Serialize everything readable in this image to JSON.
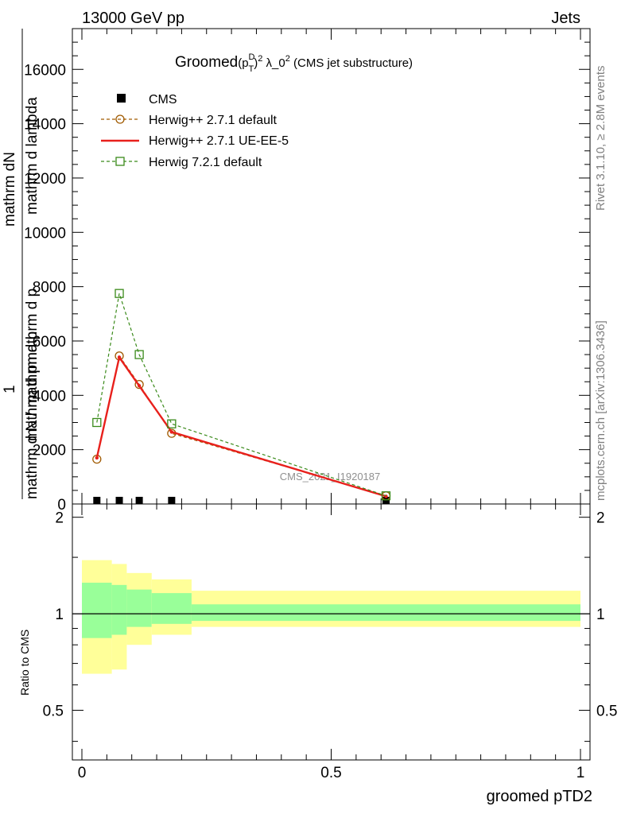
{
  "header": {
    "left": "13000 GeV pp",
    "right": "Jets"
  },
  "side_labels": {
    "rivet": "Rivet 3.1.10, ≥ 2.8M events",
    "mcplots": "mcplots.cern.ch [arXiv:1306.3436]"
  },
  "chart_data": [
    {
      "type": "line",
      "panel": "main",
      "title_prefix": "Groomed",
      "title_formula": "(p",
      "title_sup": "D",
      "title_sub": "T",
      "title_close": ")",
      "title_exp": "2",
      "title_suffix": " λ_0",
      "title_exp2": "2",
      "title_tail": " (CMS jet substructure)",
      "ylabel_top": "mathrm dN",
      "ylabel_bottom_1": "1",
      "ylabel_bottom_2": "mathrm d N / mathrm d p",
      "ylabel_mid": "mathrm d pmathrm d p",
      "ylabel_end": "mathrm d lambda",
      "watermark": "CMS_2021_I1920187",
      "xlim": [
        0,
        1
      ],
      "ylim": [
        0,
        17500
      ],
      "yticks": [
        0,
        2000,
        4000,
        6000,
        8000,
        10000,
        12000,
        14000,
        16000
      ],
      "ytick_labels": [
        "0",
        "2000",
        "4000",
        "6000",
        "8000",
        "10000",
        "12000",
        "14000",
        "16000"
      ],
      "legend_position": "top-left",
      "series": [
        {
          "name": "CMS",
          "style": "data-marker",
          "color": "#000000",
          "x": [
            0.03,
            0.075,
            0.115,
            0.18,
            0.61
          ],
          "y": [
            0,
            0,
            0,
            0,
            0
          ]
        },
        {
          "name": "Herwig++ 2.7.1 default",
          "style": "dashed-circle",
          "color": "#a05a00",
          "x": [
            0.03,
            0.075,
            0.115,
            0.18,
            0.61
          ],
          "y": [
            1650,
            5450,
            4400,
            2600,
            300
          ]
        },
        {
          "name": "Herwig++ 2.7.1 UE-EE-5",
          "style": "solid",
          "color": "#e8201c",
          "x": [
            0.03,
            0.075,
            0.115,
            0.18,
            0.61
          ],
          "y": [
            1700,
            5400,
            4350,
            2650,
            280
          ]
        },
        {
          "name": "Herwig 7.2.1 default",
          "style": "dashed-square",
          "color": "#3a8a1a",
          "x": [
            0.03,
            0.075,
            0.115,
            0.18,
            0.61
          ],
          "y": [
            3000,
            7750,
            5500,
            2950,
            300
          ]
        }
      ]
    },
    {
      "type": "area",
      "panel": "ratio",
      "ylabel": "Ratio to CMS",
      "xlabel": "groomed pTD2",
      "xlim": [
        0,
        1
      ],
      "ylim": [
        0.35,
        2.2
      ],
      "xticks": [
        0,
        0.5,
        1
      ],
      "xtick_labels": [
        "0",
        "0.5",
        "1"
      ],
      "yticks": [
        0.5,
        1,
        2
      ],
      "ytick_labels": [
        "0.5",
        "1",
        "2"
      ],
      "reference": 1,
      "bins": [
        {
          "x0": 0.0,
          "x1": 0.06,
          "yellow": [
            0.65,
            1.47
          ],
          "green": [
            0.84,
            1.25
          ]
        },
        {
          "x0": 0.06,
          "x1": 0.09,
          "yellow": [
            0.67,
            1.43
          ],
          "green": [
            0.86,
            1.23
          ]
        },
        {
          "x0": 0.09,
          "x1": 0.14,
          "yellow": [
            0.8,
            1.34
          ],
          "green": [
            0.91,
            1.19
          ]
        },
        {
          "x0": 0.14,
          "x1": 0.22,
          "yellow": [
            0.86,
            1.28
          ],
          "green": [
            0.93,
            1.16
          ]
        },
        {
          "x0": 0.22,
          "x1": 1.0,
          "yellow": [
            0.91,
            1.18
          ],
          "green": [
            0.95,
            1.07
          ]
        }
      ]
    }
  ]
}
